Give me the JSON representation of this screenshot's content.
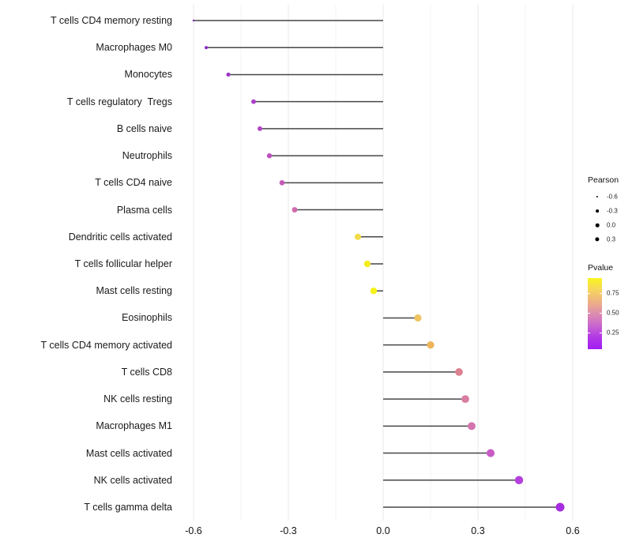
{
  "chart_data": {
    "type": "scatter",
    "variant": "lollipop",
    "orientation": "horizontal",
    "title": "",
    "xlabel": "",
    "ylabel": "",
    "grid": true,
    "xlim": [
      -0.63,
      0.64
    ],
    "x_ticks": [
      -0.6,
      -0.3,
      0.0,
      0.3,
      0.6
    ],
    "x_tick_labels": [
      "-0.6",
      "-0.3",
      "0.0",
      "0.3",
      "0.6"
    ],
    "x_minor_ticks": [
      -0.45,
      -0.15,
      0.15,
      0.45
    ],
    "categories": [
      "T cells CD4 memory resting",
      "Macrophages M0",
      "Monocytes",
      "T cells regulatory  Tregs",
      "B cells naive",
      "Neutrophils",
      "T cells CD4 naive",
      "Plasma cells",
      "Dendritic cells activated",
      "T cells follicular helper",
      "Mast cells resting",
      "Eosinophils",
      "T cells CD4 memory activated",
      "T cells CD8",
      "NK cells resting",
      "Macrophages M1",
      "Mast cells activated",
      "NK cells activated",
      "T cells gamma delta"
    ],
    "series": [
      {
        "name": "Pearson",
        "values": [
          -0.6,
          -0.56,
          -0.49,
          -0.41,
          -0.39,
          -0.36,
          -0.32,
          -0.28,
          -0.08,
          -0.05,
          -0.03,
          0.11,
          0.15,
          0.24,
          0.26,
          0.28,
          0.34,
          0.43,
          0.56
        ]
      }
    ],
    "point_colors": [
      "#7e22b8",
      "#8d28c8",
      "#9a33c8",
      "#aa40c8",
      "#b347c4",
      "#bc50c0",
      "#c55bb8",
      "#d06cae",
      "#f1dc49",
      "#f4ec1a",
      "#f6f216",
      "#efc360",
      "#edb45c",
      "#dc8190",
      "#d97da1",
      "#d374ad",
      "#c85bc6",
      "#b441dd",
      "#a62ce2"
    ],
    "stem_color": "#47474b",
    "grid_major_color": "#e9e9e9",
    "grid_minor_color": "#f3f3f3",
    "legend_position": "right"
  },
  "legend": {
    "pearson": {
      "title": "Pearson",
      "dot_color": "#000000",
      "entries": [
        {
          "label": "-0.6",
          "r": 1.1
        },
        {
          "label": "-0.3",
          "r": 1.9
        },
        {
          "label": "0.0",
          "r": 2.3
        },
        {
          "label": "0.3",
          "r": 2.6
        }
      ]
    },
    "pvalue": {
      "title": "Pvalue",
      "ticks": [
        "0.75",
        "0.50",
        "0.25"
      ],
      "gradient": [
        "#f9f51d",
        "#f6d55e",
        "#eeb183",
        "#dd8daf",
        "#c967cf",
        "#b238e6",
        "#a21ef2"
      ]
    }
  }
}
